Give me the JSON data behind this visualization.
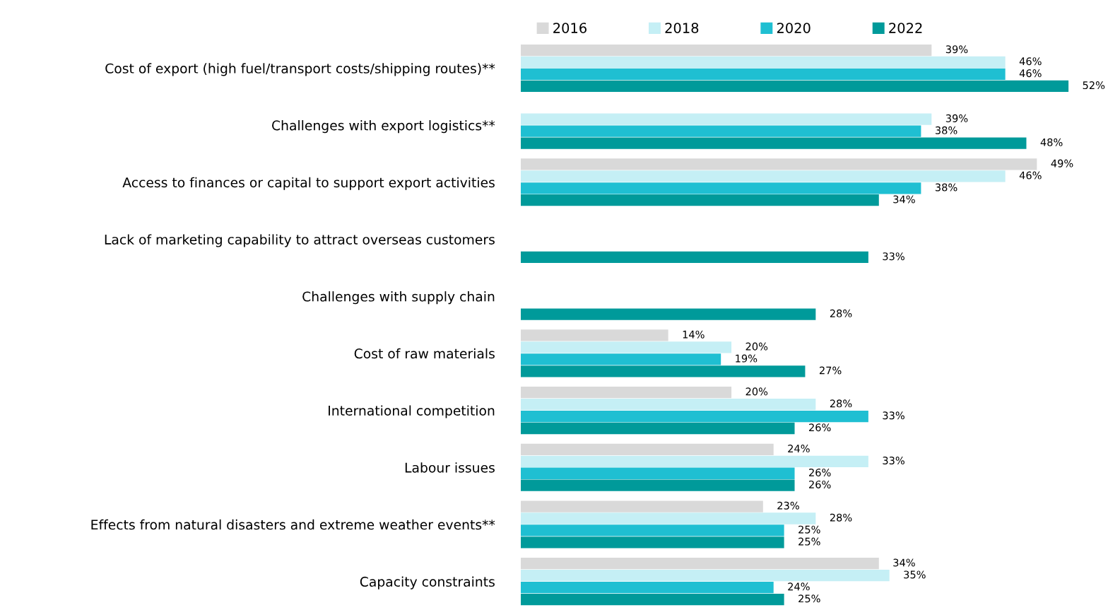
{
  "chart_data": {
    "type": "bar",
    "orientation": "horizontal",
    "legend": "top",
    "grid": false,
    "tick_labels": "y",
    "categories": [
      "Cost of export (high fuel/transport costs/shipping routes)**",
      "Challenges with export logistics**",
      "Access to finances or capital to support export activities",
      "Lack of marketing capability to attract overseas customers",
      "Challenges with supply chain",
      "Cost of raw materials",
      "International competition",
      "Labour issues",
      "Effects from natural disasters and extreme weather events**",
      "Capacity constraints"
    ],
    "series": [
      {
        "name": "2016",
        "color": "#d9d9d9",
        "values": [
          39,
          null,
          49,
          null,
          null,
          14,
          20,
          24,
          23,
          34
        ],
        "value_labels": [
          "39%",
          null,
          "49%",
          null,
          null,
          "14%",
          "20%",
          "24%",
          "23%",
          "34%"
        ]
      },
      {
        "name": "2018",
        "color": "#c5eff5",
        "values": [
          46,
          39,
          46,
          null,
          null,
          20,
          28,
          33,
          28,
          35
        ],
        "value_labels": [
          "46%",
          "39%",
          "46%",
          null,
          null,
          "20%",
          "28%",
          "33%",
          "28%",
          "35%"
        ]
      },
      {
        "name": "2020",
        "color": "#1fbfd2",
        "values": [
          46,
          38,
          38,
          null,
          null,
          19,
          33,
          26,
          25,
          24
        ],
        "value_labels": [
          "46%",
          "38%",
          "38%",
          null,
          null,
          "19%",
          "33%",
          "26%",
          "25%",
          "24%"
        ]
      },
      {
        "name": "2022",
        "color": "#009a9a",
        "values": [
          52,
          48,
          34,
          33,
          28,
          27,
          26,
          26,
          25,
          25
        ],
        "value_labels": [
          "52%",
          "48%",
          "34%",
          "33%",
          "28%",
          "27%",
          "26%",
          "26%",
          "25%",
          "25%"
        ]
      }
    ]
  }
}
